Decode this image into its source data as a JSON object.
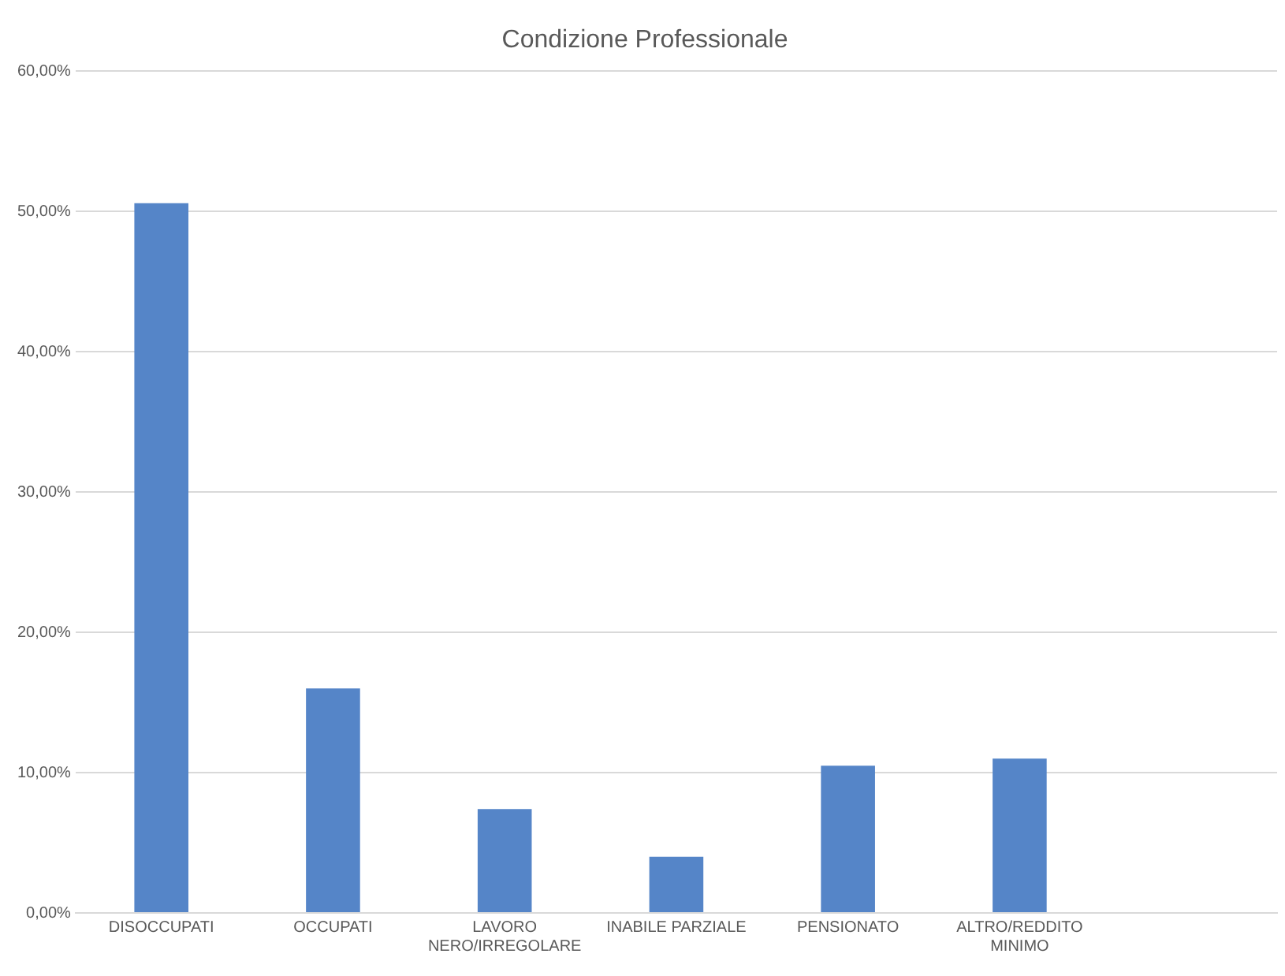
{
  "chart_data": {
    "type": "bar",
    "title": "Condizione Professionale",
    "categories": [
      "DISOCCUPATI",
      "OCCUPATI",
      "LAVORO NERO/IRREGOLARE",
      "INABILE PARZIALE",
      "PENSIONATO",
      "ALTRO/REDDITO MINIMO",
      null
    ],
    "values": [
      50.6,
      16.0,
      7.4,
      4.0,
      10.5,
      11.0,
      null
    ],
    "color": "#5585c8",
    "ylim": [
      0,
      60
    ],
    "yticks": [
      {
        "value": 0,
        "label": "0,00%"
      },
      {
        "value": 10,
        "label": "10,00%"
      },
      {
        "value": 20,
        "label": "20,00%"
      },
      {
        "value": 30,
        "label": "30,00%"
      },
      {
        "value": 40,
        "label": "40,00%"
      },
      {
        "value": 50,
        "label": "50,00%"
      },
      {
        "value": 60,
        "label": "60,00%"
      }
    ],
    "grid": "y",
    "legend": false
  }
}
